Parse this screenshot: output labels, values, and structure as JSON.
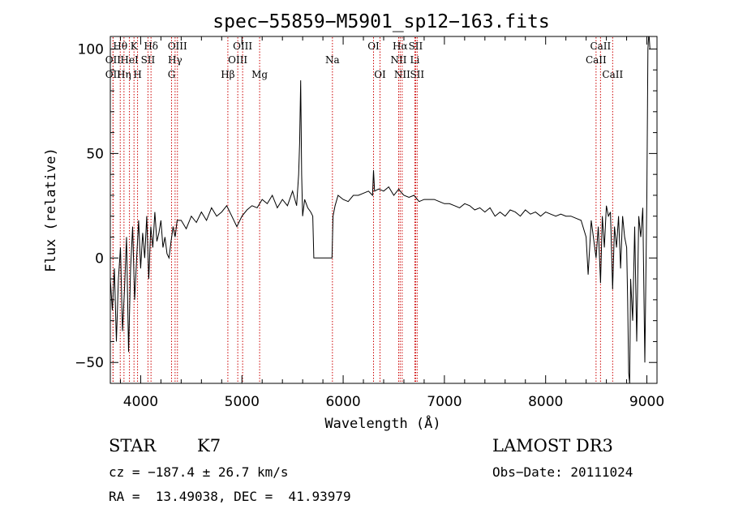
{
  "chart_data": {
    "type": "line",
    "title": "spec−55859−M5901_sp12−163.fits",
    "xlabel": "Wavelength (Å)",
    "ylabel": "Flux (relative)",
    "xlim": [
      3700,
      9100
    ],
    "ylim": [
      -60,
      106
    ],
    "xticks": [
      4000,
      5000,
      6000,
      7000,
      8000,
      9000
    ],
    "yticks": [
      -50,
      0,
      50,
      100
    ],
    "x_minor_step": 200,
    "y_minor_step": 10,
    "line_color": "#000000",
    "marker_color": "#cc0000",
    "grid": false,
    "series": [
      {
        "x": [
          3700,
          3720,
          3740,
          3760,
          3780,
          3800,
          3820,
          3840,
          3860,
          3880,
          3900,
          3920,
          3940,
          3960,
          3980,
          4000,
          4020,
          4040,
          4060,
          4080,
          4100,
          4120,
          4140,
          4160,
          4180,
          4200,
          4220,
          4240,
          4260,
          4280,
          4300,
          4320,
          4340,
          4360,
          4400,
          4450,
          4500,
          4550,
          4600,
          4650,
          4700,
          4750,
          4800,
          4850,
          4900,
          4950,
          5000,
          5050,
          5100,
          5150,
          5200,
          5250,
          5300,
          5350,
          5400,
          5450,
          5500,
          5540,
          5560,
          5570,
          5580,
          5590,
          5600,
          5620,
          5650,
          5680,
          5700,
          5710,
          5750,
          5800,
          5850,
          5890,
          5900,
          5920,
          5950,
          6000,
          6050,
          6100,
          6150,
          6200,
          6250,
          6290,
          6300,
          6310,
          6350,
          6400,
          6450,
          6500,
          6550,
          6563,
          6600,
          6650,
          6700,
          6750,
          6800,
          6850,
          6900,
          6950,
          7000,
          7050,
          7100,
          7150,
          7200,
          7250,
          7300,
          7350,
          7400,
          7450,
          7500,
          7550,
          7600,
          7650,
          7700,
          7750,
          7800,
          7850,
          7900,
          7950,
          8000,
          8050,
          8100,
          8150,
          8200,
          8250,
          8300,
          8350,
          8400,
          8420,
          8450,
          8498,
          8520,
          8542,
          8560,
          8580,
          8600,
          8620,
          8640,
          8662,
          8680,
          8700,
          8720,
          8740,
          8760,
          8780,
          8800,
          8810,
          8820,
          8830,
          8840,
          8860,
          8880,
          8900,
          8920,
          8940,
          8960,
          8980,
          9000,
          9010,
          9020,
          9030,
          9040
        ],
        "y": [
          -10,
          -25,
          -5,
          -40,
          -10,
          5,
          -35,
          -15,
          10,
          -45,
          -5,
          15,
          -20,
          0,
          18,
          -5,
          12,
          0,
          20,
          -10,
          15,
          5,
          22,
          8,
          12,
          18,
          5,
          10,
          2,
          0,
          8,
          15,
          10,
          18,
          18,
          14,
          20,
          17,
          22,
          18,
          24,
          20,
          22,
          25,
          20,
          15,
          20,
          23,
          25,
          24,
          28,
          26,
          30,
          24,
          28,
          25,
          32,
          25,
          40,
          55,
          85,
          40,
          20,
          28,
          24,
          22,
          20,
          0,
          0,
          0,
          0,
          0,
          20,
          25,
          30,
          28,
          27,
          30,
          30,
          31,
          32,
          30,
          42,
          32,
          33,
          32,
          34,
          30,
          33,
          32,
          30,
          29,
          30,
          27,
          28,
          28,
          28,
          27,
          26,
          26,
          25,
          24,
          26,
          25,
          23,
          24,
          22,
          24,
          20,
          22,
          20,
          23,
          22,
          20,
          23,
          21,
          22,
          20,
          22,
          21,
          20,
          21,
          20,
          20,
          19,
          18,
          10,
          -8,
          18,
          0,
          15,
          -12,
          20,
          5,
          25,
          20,
          22,
          -15,
          15,
          5,
          20,
          -5,
          20,
          10,
          5,
          -20,
          -55,
          -60,
          -10,
          -30,
          15,
          -40,
          20,
          10,
          24,
          -50,
          30,
          100,
          108,
          100,
          100
        ]
      }
    ],
    "lines": [
      {
        "label": "Hθ",
        "x": 3798,
        "row": 1
      },
      {
        "label": "OII",
        "x": 3727,
        "row": 2
      },
      {
        "label": "OII",
        "x": 3727,
        "row": 3
      },
      {
        "label": "Hη",
        "x": 3835,
        "row": 3
      },
      {
        "label": "K",
        "x": 3934,
        "row": 1
      },
      {
        "label": "HeI",
        "x": 3889,
        "row": 2
      },
      {
        "label": "H",
        "x": 3969,
        "row": 3
      },
      {
        "label": "SII",
        "x": 4072,
        "row": 2
      },
      {
        "label": "Hδ",
        "x": 4102,
        "row": 1
      },
      {
        "label": "OIII",
        "x": 4363,
        "row": 1
      },
      {
        "label": "Hγ",
        "x": 4340,
        "row": 2
      },
      {
        "label": "G",
        "x": 4305,
        "row": 3
      },
      {
        "label": "Hβ",
        "x": 4861,
        "row": 3
      },
      {
        "label": "OIII",
        "x": 5007,
        "row": 1
      },
      {
        "label": "OIII",
        "x": 4959,
        "row": 2
      },
      {
        "label": "Mg",
        "x": 5175,
        "row": 3
      },
      {
        "label": "Na",
        "x": 5894,
        "row": 2
      },
      {
        "label": "OI",
        "x": 6300,
        "row": 1
      },
      {
        "label": "OI",
        "x": 6364,
        "row": 3
      },
      {
        "label": "Hα",
        "x": 6563,
        "row": 1
      },
      {
        "label": "SII",
        "x": 6716,
        "row": 1
      },
      {
        "label": "NII",
        "x": 6548,
        "row": 2
      },
      {
        "label": "NII",
        "x": 6583,
        "row": 3
      },
      {
        "label": "Li",
        "x": 6708,
        "row": 2
      },
      {
        "label": "SII",
        "x": 6731,
        "row": 3
      },
      {
        "label": "CaII",
        "x": 8542,
        "row": 1
      },
      {
        "label": "CaII",
        "x": 8498,
        "row": 2
      },
      {
        "label": "CaII",
        "x": 8662,
        "row": 3
      }
    ]
  },
  "info": {
    "class_label": "STAR",
    "subclass": "K7",
    "survey": "LAMOST DR3",
    "cz": "cz = −187.4 ± 26.7 km/s",
    "obs_date": "Obs−Date: 20111024",
    "radec": "RA =  13.49038, DEC =  41.93979"
  }
}
